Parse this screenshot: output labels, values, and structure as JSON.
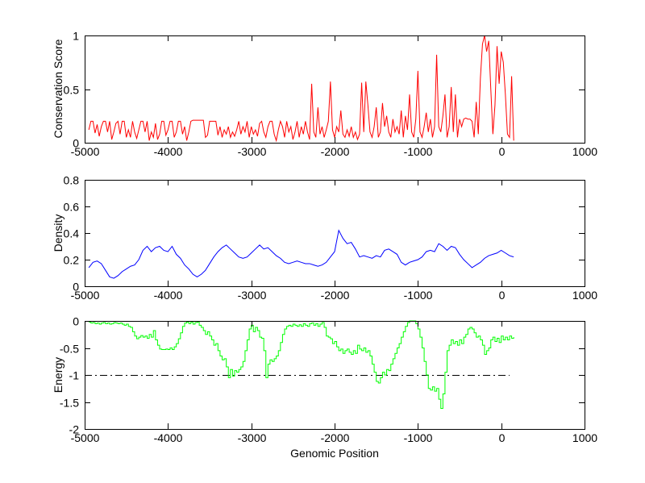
{
  "figure": {
    "background": "#ffffff",
    "xlabel": "Genomic Position"
  },
  "axis": {
    "xlim": [
      -5000,
      1000
    ],
    "xticks": [
      -5000,
      -4000,
      -3000,
      -2000,
      -1000,
      0,
      1000
    ],
    "xtick_labels": [
      "-5000",
      "-4000",
      "-3000",
      "-2000",
      "-1000",
      "0",
      "1000"
    ],
    "grid": false,
    "box": true,
    "tick_direction": "in"
  },
  "chart_data": [
    {
      "type": "line",
      "ylabel": "Conservation Score",
      "ylim": [
        0,
        1
      ],
      "yticks": [
        0,
        0.5,
        1
      ],
      "ytick_labels": [
        "0",
        "0.5",
        "1"
      ],
      "series": [
        {
          "name": "conservation-score",
          "color": "#ff0000",
          "x_start": -4950,
          "x_step": 25,
          "values": [
            0.12,
            0.2,
            0.2,
            0.09,
            0.17,
            0.06,
            0.15,
            0.2,
            0.2,
            0.1,
            0.2,
            0.03,
            0.1,
            0.18,
            0.2,
            0.08,
            0.2,
            0.2,
            0.05,
            0.12,
            0.05,
            0.2,
            0.1,
            0.04,
            0.12,
            0.2,
            0.2,
            0.1,
            0.2,
            0.02,
            0.1,
            0.05,
            0.18,
            0.03,
            0.08,
            0.2,
            0.2,
            0.07,
            0.12,
            0.2,
            0.2,
            0.05,
            0.1,
            0.2,
            0.2,
            0.08,
            0.15,
            0.02,
            0.1,
            0.2,
            0.21,
            0.21,
            0.21,
            0.21,
            0.21,
            0.21,
            0.05,
            0.07,
            0.2,
            0.2,
            0.2,
            0.2,
            0.07,
            0.15,
            0.05,
            0.12,
            0.08,
            0.15,
            0.05,
            0.1,
            0.06,
            0.12,
            0.2,
            0.08,
            0.15,
            0.1,
            0.2,
            0.05,
            0.15,
            0.08,
            0.12,
            0.06,
            0.18,
            0.2,
            0.1,
            0.05,
            0.15,
            0.2,
            0.2,
            0.08,
            0.02,
            0.12,
            0.2,
            0.15,
            0.05,
            0.2,
            0.1,
            0.15,
            0.03,
            0.1,
            0.2,
            0.05,
            0.15,
            0.08,
            0.2,
            0.1,
            0.03,
            0.55,
            0.1,
            0.05,
            0.33,
            0.08,
            0.15,
            0.05,
            0.12,
            0.2,
            0.57,
            0.12,
            0.05,
            0.15,
            0.1,
            0.3,
            0.08,
            0.05,
            0.12,
            0.06,
            0.15,
            0.05,
            0.1,
            0.03,
            0.08,
            0.56,
            0.1,
            0.57,
            0.35,
            0.1,
            0.05,
            0.15,
            0.33,
            0.05,
            0.1,
            0.37,
            0.15,
            0.25,
            0.1,
            0.05,
            0.22,
            0.1,
            0.15,
            0.08,
            0.3,
            0.05,
            0.25,
            0.12,
            0.45,
            0.1,
            0.05,
            0.22,
            0.67,
            0.1,
            0.05,
            0.15,
            0.28,
            0.1,
            0.22,
            0.05,
            0.15,
            0.82,
            0.15,
            0.1,
            0.25,
            0.45,
            0.05,
            0.15,
            0.52,
            0.1,
            0.45,
            0.05,
            0.22,
            0.15,
            0.22,
            0.23,
            0.22,
            0.22,
            0.2,
            0.05,
            0.38,
            0.08,
            0.6,
            0.92,
            1.0,
            0.85,
            0.95,
            0.5,
            0.08,
            0.35,
            0.9,
            0.55,
            0.85,
            0.75,
            0.45,
            0.08,
            0.05,
            0.62,
            0.02
          ]
        }
      ]
    },
    {
      "type": "line",
      "ylabel": "Density",
      "ylim": [
        0,
        0.8
      ],
      "yticks": [
        0,
        0.2,
        0.4,
        0.6,
        0.8
      ],
      "ytick_labels": [
        "0",
        "0.2",
        "0.4",
        "0.6",
        "0.8"
      ],
      "series": [
        {
          "name": "density",
          "color": "#0000ff",
          "x_start": -4950,
          "x_step": 50,
          "values": [
            0.14,
            0.18,
            0.19,
            0.17,
            0.12,
            0.07,
            0.06,
            0.08,
            0.11,
            0.13,
            0.15,
            0.16,
            0.2,
            0.27,
            0.3,
            0.26,
            0.29,
            0.3,
            0.27,
            0.26,
            0.3,
            0.24,
            0.21,
            0.16,
            0.13,
            0.09,
            0.07,
            0.09,
            0.12,
            0.17,
            0.22,
            0.26,
            0.29,
            0.31,
            0.28,
            0.25,
            0.22,
            0.21,
            0.22,
            0.25,
            0.28,
            0.31,
            0.28,
            0.29,
            0.26,
            0.23,
            0.21,
            0.18,
            0.17,
            0.18,
            0.19,
            0.18,
            0.17,
            0.17,
            0.16,
            0.15,
            0.16,
            0.18,
            0.22,
            0.26,
            0.42,
            0.36,
            0.32,
            0.33,
            0.28,
            0.22,
            0.23,
            0.22,
            0.21,
            0.23,
            0.22,
            0.27,
            0.28,
            0.26,
            0.24,
            0.18,
            0.16,
            0.18,
            0.19,
            0.2,
            0.22,
            0.26,
            0.27,
            0.26,
            0.32,
            0.3,
            0.27,
            0.3,
            0.29,
            0.24,
            0.2,
            0.17,
            0.14,
            0.16,
            0.18,
            0.21,
            0.23,
            0.24,
            0.25,
            0.27,
            0.25,
            0.23,
            0.22
          ]
        }
      ]
    },
    {
      "type": "line",
      "ylabel": "Energy",
      "ylim": [
        -2,
        0
      ],
      "yticks": [
        -2,
        -1.5,
        -1,
        -0.5,
        0
      ],
      "ytick_labels": [
        "-2",
        "-1.5",
        "-1",
        "-0.5",
        "0"
      ],
      "reference_line": {
        "y": -1,
        "color": "#000000",
        "style": "dash-dot",
        "x_start": -5000,
        "x_end": 100
      },
      "series": [
        {
          "name": "energy",
          "color": "#00ff00",
          "line_style": "stairs",
          "x_start": -4950,
          "x_step": 25,
          "values": [
            -0.02,
            -0.04,
            -0.03,
            -0.05,
            -0.04,
            -0.06,
            -0.04,
            -0.03,
            -0.05,
            -0.04,
            -0.06,
            -0.05,
            -0.03,
            -0.04,
            -0.05,
            -0.04,
            -0.06,
            -0.08,
            -0.06,
            -0.1,
            -0.12,
            -0.2,
            -0.28,
            -0.33,
            -0.3,
            -0.27,
            -0.3,
            -0.28,
            -0.32,
            -0.25,
            -0.3,
            -0.18,
            -0.35,
            -0.45,
            -0.52,
            -0.53,
            -0.53,
            -0.52,
            -0.53,
            -0.5,
            -0.53,
            -0.48,
            -0.42,
            -0.33,
            -0.22,
            -0.1,
            -0.04,
            -0.02,
            -0.05,
            -0.02,
            -0.06,
            -0.03,
            -0.02,
            -0.08,
            -0.12,
            -0.18,
            -0.25,
            -0.2,
            -0.28,
            -0.35,
            -0.45,
            -0.42,
            -0.55,
            -0.65,
            -0.72,
            -0.7,
            -0.85,
            -1.05,
            -0.9,
            -1.02,
            -0.92,
            -0.95,
            -0.9,
            -0.85,
            -0.75,
            -0.55,
            -0.35,
            -0.15,
            -0.08,
            -0.2,
            -0.12,
            -0.18,
            -0.3,
            -0.32,
            -0.55,
            -1.05,
            -0.8,
            -0.72,
            -0.75,
            -0.7,
            -0.65,
            -0.55,
            -0.4,
            -0.25,
            -0.15,
            -0.1,
            -0.08,
            -0.1,
            -0.06,
            -0.08,
            -0.1,
            -0.07,
            -0.1,
            -0.05,
            -0.08,
            -0.1,
            -0.05,
            -0.04,
            -0.08,
            -0.05,
            -0.1,
            -0.06,
            -0.03,
            -0.12,
            -0.28,
            -0.3,
            -0.33,
            -0.42,
            -0.38,
            -0.48,
            -0.55,
            -0.52,
            -0.6,
            -0.55,
            -0.52,
            -0.58,
            -0.62,
            -0.55,
            -0.6,
            -0.45,
            -0.52,
            -0.55,
            -0.5,
            -0.58,
            -0.55,
            -0.65,
            -0.8,
            -0.95,
            -1.12,
            -1.15,
            -1.05,
            -0.95,
            -1.0,
            -0.9,
            -0.92,
            -0.8,
            -0.7,
            -0.6,
            -0.5,
            -0.42,
            -0.3,
            -0.2,
            -0.1,
            -0.03,
            0,
            0,
            0,
            -0.05,
            -0.15,
            -0.3,
            -0.5,
            -0.75,
            -1.0,
            -1.25,
            -1.28,
            -1.22,
            -1.3,
            -1.25,
            -1.45,
            -1.62,
            -1.35,
            -0.95,
            -0.55,
            -0.45,
            -0.35,
            -0.42,
            -0.38,
            -0.45,
            -0.35,
            -0.42,
            -0.3,
            -0.25,
            -0.15,
            -0.12,
            -0.15,
            -0.22,
            -0.3,
            -0.28,
            -0.35,
            -0.45,
            -0.62,
            -0.55,
            -0.5,
            -0.35,
            -0.3,
            -0.38,
            -0.32,
            -0.4,
            -0.28,
            -0.35,
            -0.3,
            -0.35,
            -0.28,
            -0.32,
            -0.3
          ]
        }
      ]
    }
  ]
}
